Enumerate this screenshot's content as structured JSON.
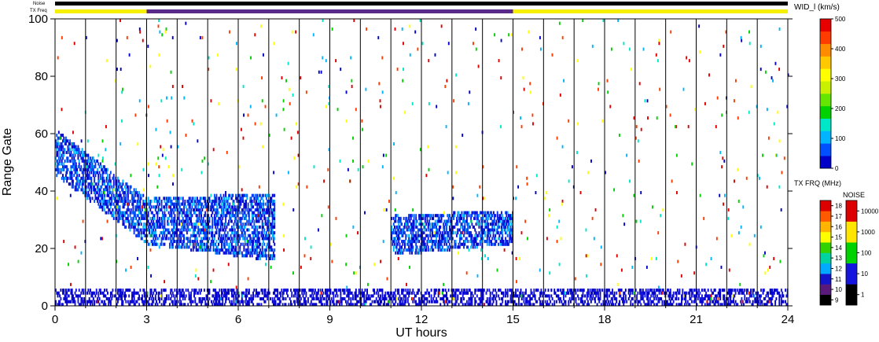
{
  "chart_data": {
    "type": "heatmap",
    "title": "",
    "status_labels": {
      "noise": "Noise",
      "txfreq": "TX Freq"
    },
    "xlabel": "UT hours",
    "ylabel": "Range Gate",
    "xlim": [
      0,
      24
    ],
    "ylim": [
      0,
      100
    ],
    "x_ticks": [
      "0",
      "3",
      "6",
      "9",
      "12",
      "15",
      "18",
      "21",
      "24"
    ],
    "x_tick_values": [
      0,
      3,
      6,
      9,
      12,
      15,
      18,
      21,
      24
    ],
    "y_ticks": [
      "0",
      "20",
      "40",
      "60",
      "80",
      "100"
    ],
    "y_tick_values": [
      0,
      20,
      40,
      60,
      80,
      100
    ],
    "scan_boundaries_ut": [
      1,
      2,
      3,
      4,
      5,
      6,
      7,
      8,
      9,
      10,
      11,
      12,
      13,
      14,
      15,
      16,
      17,
      18,
      19,
      20,
      21,
      22,
      23
    ],
    "txfreq_bar_segments": [
      {
        "start": 0,
        "end": 3,
        "color": "#f5f000"
      },
      {
        "start": 3,
        "end": 15,
        "color": "#5a2a8a"
      },
      {
        "start": 15,
        "end": 24,
        "color": "#f5f000"
      }
    ],
    "echo_regions": [
      {
        "label": "early descending band",
        "ut": [
          0.0,
          3.0
        ],
        "gate_start": [
          60,
          36
        ],
        "gate_end": [
          46,
          22
        ],
        "value": "blue"
      },
      {
        "label": "morning band",
        "ut": [
          3.0,
          7.2
        ],
        "gate_start": [
          36,
          38
        ],
        "gate_end": [
          22,
          16
        ],
        "value": "blue"
      },
      {
        "label": "midday band",
        "ut": [
          11.0,
          15.0
        ],
        "gate_start": [
          30,
          32
        ],
        "gate_end": [
          18,
          22
        ],
        "value": "blue"
      },
      {
        "label": "near-range band",
        "ut": [
          0,
          24
        ],
        "gate_start": [
          5,
          5
        ],
        "gate_end": [
          0,
          0
        ],
        "value": "blue"
      }
    ],
    "colorbars": [
      {
        "title": "WID_l  (km/s)",
        "ticks": [
          "0",
          "100",
          "200",
          "300",
          "400",
          "500"
        ],
        "range": [
          0,
          500
        ],
        "colors": [
          "#0000c8",
          "#0050ff",
          "#00b4ff",
          "#00e6c8",
          "#00d200",
          "#64e600",
          "#c8f000",
          "#ffff00",
          "#ffc800",
          "#ff8c00",
          "#ff3c00",
          "#e60000"
        ]
      },
      {
        "title": "TX FRQ (MHz)",
        "ticks": [
          "9",
          "10",
          "11",
          "12",
          "13",
          "14",
          "15",
          "16",
          "17",
          "18"
        ],
        "colors": [
          "#000000",
          "#5a1a7a",
          "#1414c8",
          "#00aaff",
          "#00d2a0",
          "#32d200",
          "#ffff00",
          "#ffb400",
          "#ff5a00",
          "#dc0000"
        ]
      },
      {
        "title": "NOISE",
        "ticks": [
          "1",
          "10",
          "100",
          "1000",
          "10000"
        ],
        "colors": [
          "#000000",
          "#1414dc",
          "#00d200",
          "#ffe600",
          "#dc0000"
        ]
      }
    ],
    "colors": {
      "axis": "#000000",
      "background": "#ffffff"
    }
  }
}
